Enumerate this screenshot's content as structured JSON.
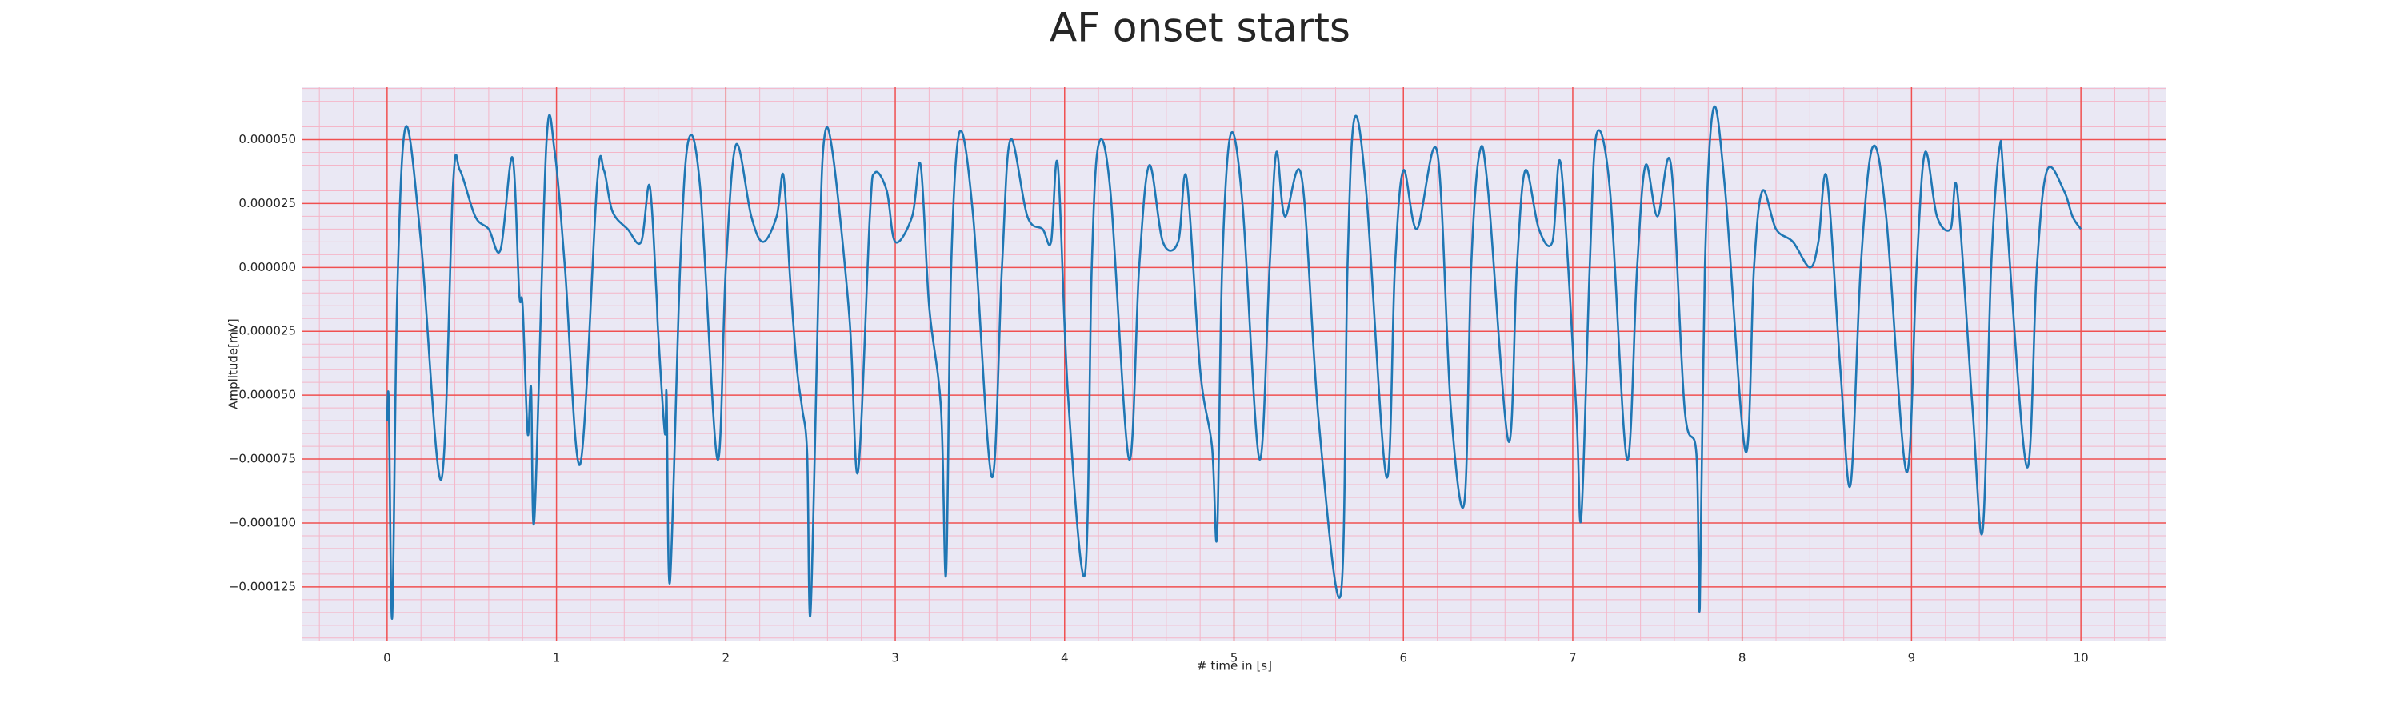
{
  "chart_data": {
    "type": "line",
    "title": "AF onset starts",
    "xlabel": "# time in [s]",
    "ylabel": "Amplitude[mV]",
    "xlim": [
      -0.5,
      10.5
    ],
    "ylim": [
      -0.000146,
      7.05e-05
    ],
    "xticks": [
      0,
      1,
      2,
      3,
      4,
      5,
      6,
      7,
      8,
      9,
      10
    ],
    "yticks": [
      {
        "value": -0.000125,
        "label": "−0.000125"
      },
      {
        "value": -0.0001,
        "label": "−0.000100"
      },
      {
        "value": -7.5e-05,
        "label": "−0.000075"
      },
      {
        "value": -5e-05,
        "label": "−0.000050"
      },
      {
        "value": -2.5e-05,
        "label": "−0.000025"
      },
      {
        "value": 0,
        "label": "0.000000"
      },
      {
        "value": 2.5e-05,
        "label": "0.000025"
      },
      {
        "value": 5e-05,
        "label": "0.000050"
      }
    ],
    "grid": true,
    "minor_grid": true,
    "series": [
      {
        "color": "#1f77b4",
        "x": [
          0,
          0.01,
          0.03,
          0.06,
          0.11,
          0.2,
          0.32,
          0.39,
          0.43,
          0.52,
          0.6,
          0.67,
          0.74,
          0.78,
          0.8,
          0.83,
          0.85,
          0.87,
          0.94,
          0.99,
          1.05,
          1.14,
          1.24,
          1.28,
          1.33,
          1.42,
          1.5,
          1.55,
          1.59,
          1.6,
          1.64,
          1.65,
          1.67,
          1.73,
          1.78,
          1.85,
          1.95,
          2.0,
          2.06,
          2.15,
          2.22,
          2.3,
          2.34,
          2.38,
          2.42,
          2.45,
          2.48,
          2.5,
          2.55,
          2.58,
          2.63,
          2.73,
          2.78,
          2.85,
          2.88,
          2.95,
          3.0,
          3.1,
          3.15,
          3.2,
          3.27,
          3.3,
          3.33,
          3.38,
          3.46,
          3.57,
          3.63,
          3.68,
          3.78,
          3.87,
          3.92,
          3.96,
          4.02,
          4.12,
          4.16,
          4.2,
          4.27,
          4.38,
          4.44,
          4.5,
          4.58,
          4.67,
          4.72,
          4.8,
          4.87,
          4.9,
          4.93,
          4.98,
          5.05,
          5.15,
          5.21,
          5.25,
          5.3,
          5.4,
          5.5,
          5.63,
          5.67,
          5.71,
          5.78,
          5.9,
          5.95,
          6.0,
          6.08,
          6.2,
          6.28,
          6.36,
          6.4,
          6.45,
          6.5,
          6.62,
          6.67,
          6.72,
          6.8,
          6.88,
          6.93,
          7.02,
          7.05,
          7.1,
          7.14,
          7.22,
          7.32,
          7.38,
          7.43,
          7.5,
          7.58,
          7.66,
          7.73,
          7.75,
          7.78,
          7.83,
          7.9,
          8.02,
          8.07,
          8.12,
          8.2,
          8.3,
          8.4,
          8.45,
          8.5,
          8.58,
          8.64,
          8.7,
          8.77,
          8.85,
          8.97,
          9.03,
          9.08,
          9.15,
          9.23,
          9.27,
          9.36,
          9.42,
          9.47,
          9.52,
          9.55,
          9.68,
          9.74,
          9.8,
          9.9,
          9.95,
          10.0
        ],
        "values": [
          -6e-05,
          -5.3e-05,
          -0.000137,
          -1e-05,
          5.5e-05,
          1e-05,
          -8.3e-05,
          3.3e-05,
          3.8e-05,
          2e-05,
          1.5e-05,
          7e-06,
          4.3e-05,
          -1e-05,
          -1.5e-05,
          -6.5e-05,
          -4.7e-05,
          -9.8e-05,
          4.8e-05,
          4.5e-05,
          0,
          -7.7e-05,
          3.3e-05,
          3.8e-05,
          2.2e-05,
          1.5e-05,
          1e-05,
          3.2e-05,
          -1e-05,
          -2.5e-05,
          -6.5e-05,
          -5e-05,
          -0.000123,
          0,
          5e-05,
          3e-05,
          -7.5e-05,
          0,
          4.8e-05,
          2e-05,
          1e-05,
          2e-05,
          3.6e-05,
          -5e-06,
          -4e-05,
          -5.5e-05,
          -7.3e-05,
          -0.000135,
          0,
          5e-05,
          4.5e-05,
          -2e-05,
          -8e-05,
          2e-05,
          3.7e-05,
          3e-05,
          1e-05,
          2e-05,
          4e-05,
          -1.5e-05,
          -5.5e-05,
          -0.00012,
          0,
          5.3e-05,
          2e-05,
          -8.2e-05,
          0,
          5e-05,
          2e-05,
          1.5e-05,
          1e-05,
          4e-05,
          -5e-05,
          -0.00012,
          0,
          4.8e-05,
          3e-05,
          -7.5e-05,
          0,
          4e-05,
          1e-05,
          1e-05,
          3.5e-05,
          -4e-05,
          -7e-05,
          -0.000105,
          0,
          5.2e-05,
          2.5e-05,
          -7.5e-05,
          0,
          4.5e-05,
          2e-05,
          3.5e-05,
          -6e-05,
          -0.000128,
          0,
          5.8e-05,
          3e-05,
          -8.2e-05,
          0,
          3.8e-05,
          1.5e-05,
          4.5e-05,
          -5.5e-05,
          -9.2e-05,
          0,
          4.5e-05,
          3e-05,
          -6.8e-05,
          0,
          3.8e-05,
          1.5e-05,
          1e-05,
          4e-05,
          -5.5e-05,
          -9.8e-05,
          0,
          5.2e-05,
          3e-05,
          -7.5e-05,
          0,
          4e-05,
          2e-05,
          4e-05,
          -5.5e-05,
          -7.3e-05,
          -0.000133,
          0,
          6.2e-05,
          3e-05,
          -7.2e-05,
          0,
          3e-05,
          1.5e-05,
          1e-05,
          0,
          1e-05,
          3.5e-05,
          -4e-05,
          -8.5e-05,
          0,
          4.7e-05,
          2e-05,
          -8e-05,
          0,
          4.5e-05,
          2e-05,
          1.5e-05,
          3e-05,
          -5.5e-05,
          -0.000103,
          0,
          4.7e-05,
          3e-05,
          -7.8e-05,
          0,
          3.8e-05,
          3e-05,
          2e-05,
          1.5e-05
        ]
      }
    ]
  }
}
